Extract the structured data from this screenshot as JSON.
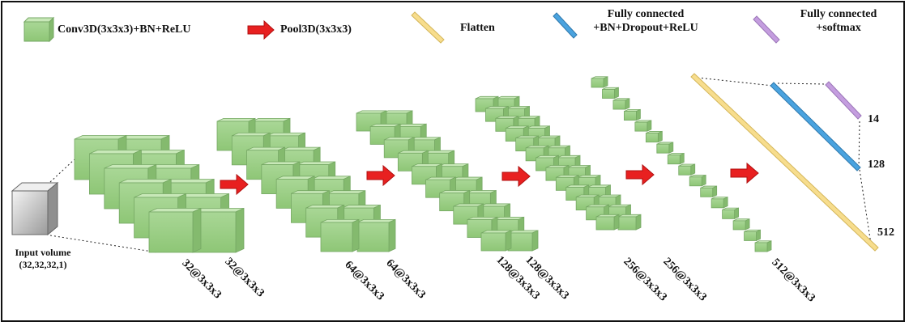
{
  "legend": {
    "conv": "Conv3D(3x3x3)+BN+ReLU",
    "pool": "Pool3D(3x3x3)",
    "flatten": "Flatten",
    "fc1_line1": "Fully connected",
    "fc1_line2": "+BN+Dropout+ReLU",
    "fc2_line1": "Fully connected",
    "fc2_line2": "+softmax"
  },
  "input": {
    "line1": "Input volume",
    "line2": "(32,32,32,1)"
  },
  "blocks": [
    {
      "label_a": "32@3x3x3",
      "label_b": "32@3x3x3"
    },
    {
      "label_a": "64@3x3x3",
      "label_b": "64@3x3x3"
    },
    {
      "label_a": "128@3x3x3",
      "label_b": "128@3x3x3"
    },
    {
      "label_a": "256@3x3x3",
      "label_b": "256@3x3x3"
    },
    {
      "label_a": "512@3x3x3"
    }
  ],
  "dense": {
    "flatten_size": "512",
    "fc1_size": "128",
    "fc2_size": "14"
  },
  "colors": {
    "conv_front": "#9fd18a",
    "conv_top": "#c8e8b8",
    "conv_side": "#84ba6e",
    "conv_stroke": "#76a864",
    "pool_arrow": "#e82020",
    "flatten": "#f7dd8d",
    "fc1": "#4aa3df",
    "fc2": "#c49ddf",
    "input_cube": "#cfcfcf"
  }
}
